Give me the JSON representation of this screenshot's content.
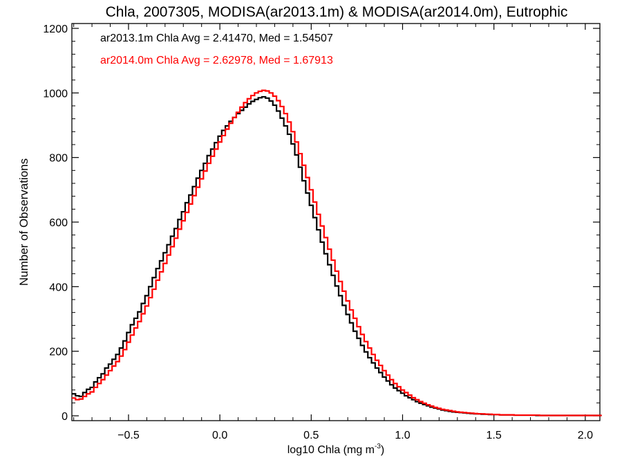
{
  "chart_data": {
    "type": "histogram-step",
    "title": "Chla, 2007305, MODISA(ar2013.1m) & MODISA(ar2014.0m), Eutrophic",
    "xlabel": "log10 Chla (mg m",
    "xlabel_sup": "-3",
    "xlabel_close": ")",
    "ylabel": "Number of Observations",
    "xlim": [
      -0.81,
      2.08
    ],
    "ylim": [
      -15,
      1215
    ],
    "x_ticks": [
      -0.5,
      0.0,
      0.5,
      1.0,
      1.5,
      2.0
    ],
    "x_tick_labels": [
      "−0.5",
      "0.0",
      "0.5",
      "1.0",
      "1.5",
      "2.0"
    ],
    "y_ticks": [
      0,
      200,
      400,
      600,
      800,
      1000,
      1200
    ],
    "y_tick_labels": [
      "0",
      "200",
      "400",
      "600",
      "800",
      "1000",
      "1200"
    ],
    "bin_width": 0.02,
    "bin_start": -0.81,
    "annotations": [
      {
        "text": "ar2013.1m Chla Avg = 2.41470, Med = 1.54507",
        "color": "#000000"
      },
      {
        "text": "ar2014.0m Chla Avg = 2.62978, Med = 1.67913",
        "color": "#ff0000"
      }
    ],
    "series": [
      {
        "name": "ar2013.1m",
        "color": "#000000",
        "values": [
          68,
          62,
          60,
          72,
          82,
          88,
          105,
          118,
          130,
          148,
          160,
          175,
          190,
          210,
          232,
          258,
          282,
          302,
          322,
          348,
          372,
          400,
          428,
          456,
          480,
          505,
          530,
          556,
          580,
          608,
          632,
          660,
          684,
          710,
          736,
          760,
          782,
          806,
          826,
          846,
          866,
          884,
          898,
          912,
          924,
          936,
          946,
          956,
          966,
          974,
          980,
          985,
          988,
          984,
          975,
          962,
          944,
          922,
          898,
          872,
          842,
          808,
          770,
          728,
          690,
          652,
          614,
          576,
          538,
          502,
          468,
          435,
          402,
          372,
          342,
          314,
          288,
          262,
          240,
          218,
          198,
          180,
          164,
          148,
          134,
          120,
          108,
          96,
          86,
          78,
          70,
          62,
          56,
          50,
          44,
          39,
          35,
          31,
          27,
          24,
          21,
          18,
          16,
          14,
          12,
          11,
          10,
          9,
          8,
          7,
          6,
          6,
          5,
          5,
          4,
          4,
          4,
          3,
          3,
          3,
          3,
          2,
          2,
          2,
          2,
          2,
          2,
          1,
          1,
          1,
          1,
          1,
          1,
          1,
          1,
          1,
          1,
          1,
          1,
          1,
          1,
          1,
          1,
          1,
          1
        ]
      },
      {
        "name": "ar2014.0m",
        "color": "#ff0000",
        "values": [
          55,
          50,
          52,
          60,
          68,
          74,
          88,
          100,
          112,
          126,
          140,
          154,
          168,
          185,
          205,
          228,
          250,
          272,
          292,
          316,
          340,
          366,
          392,
          420,
          446,
          472,
          498,
          524,
          550,
          578,
          604,
          630,
          656,
          682,
          708,
          734,
          758,
          782,
          804,
          826,
          848,
          868,
          888,
          906,
          924,
          940,
          956,
          970,
          982,
          992,
          1000,
          1005,
          1008,
          1006,
          1000,
          990,
          976,
          958,
          936,
          910,
          880,
          848,
          812,
          776,
          738,
          700,
          662,
          624,
          588,
          552,
          516,
          482,
          448,
          416,
          386,
          356,
          328,
          302,
          276,
          252,
          230,
          210,
          190,
          172,
          156,
          140,
          126,
          112,
          100,
          90,
          80,
          72,
          64,
          56,
          50,
          44,
          39,
          34,
          30,
          26,
          23,
          20,
          18,
          16,
          14,
          12,
          11,
          10,
          9,
          8,
          7,
          6,
          6,
          5,
          5,
          4,
          4,
          3,
          3,
          3,
          3,
          2,
          2,
          2,
          2,
          2,
          2,
          2,
          1,
          1,
          1,
          1,
          1,
          1,
          1,
          1,
          1,
          1,
          1,
          1,
          1,
          1,
          1,
          1,
          1
        ]
      }
    ]
  }
}
